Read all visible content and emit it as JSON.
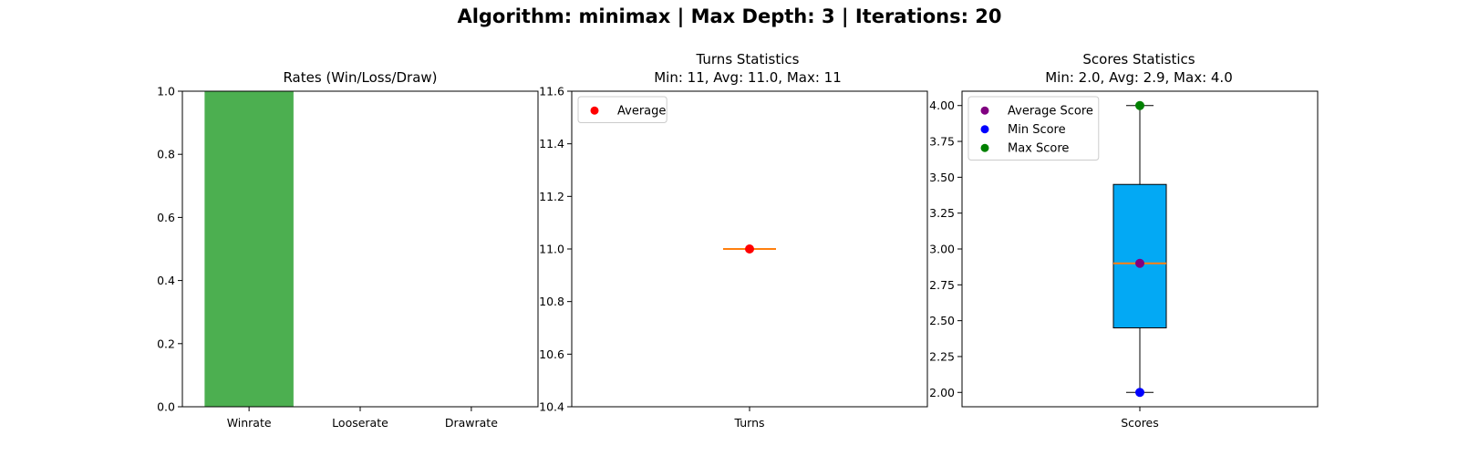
{
  "figure": {
    "suptitle": "Algorithm: minimax | Max Depth: 3 | Iterations: 20"
  },
  "chart_data": [
    {
      "type": "bar",
      "title": "Rates (Win/Loss/Draw)",
      "categories": [
        "Winrate",
        "Looserate",
        "Drawrate"
      ],
      "values": [
        1.0,
        0.0,
        0.0
      ],
      "ylim": [
        0,
        1
      ],
      "yticks": [
        "0.0",
        "0.2",
        "0.4",
        "0.6",
        "0.8",
        "1.0"
      ],
      "bar_color": "#4caf50",
      "grid": false
    },
    {
      "type": "box",
      "title_lines": [
        "Turns Statistics",
        "Min: 11, Avg: 11.0, Max: 11"
      ],
      "category": "Turns",
      "stats": {
        "min": 11,
        "q1": 11,
        "median": 11,
        "q3": 11,
        "max": 11
      },
      "points": [
        {
          "name": "Average",
          "value": 11.0,
          "color": "#ff0000"
        }
      ],
      "ylim": [
        10.4,
        11.6
      ],
      "yticks": [
        "10.4",
        "10.6",
        "10.8",
        "11.0",
        "11.2",
        "11.4",
        "11.6"
      ],
      "median_color": "#ff7f0e",
      "legend": "upper-left"
    },
    {
      "type": "box",
      "title_lines": [
        "Scores Statistics",
        "Min: 2.0, Avg: 2.9, Max: 4.0"
      ],
      "category": "Scores",
      "stats": {
        "min": 2.0,
        "q1": 2.45,
        "median": 2.9,
        "q3": 3.45,
        "max": 4.0
      },
      "points": [
        {
          "name": "Average Score",
          "value": 2.9,
          "color": "#800080"
        },
        {
          "name": "Min Score",
          "value": 2.0,
          "color": "#0000ff"
        },
        {
          "name": "Max Score",
          "value": 4.0,
          "color": "#008000"
        }
      ],
      "ylim": [
        1.9,
        4.1
      ],
      "yticks": [
        "2.00",
        "2.25",
        "2.50",
        "2.75",
        "3.00",
        "3.25",
        "3.50",
        "3.75",
        "4.00"
      ],
      "box_color": "#03a9f4",
      "median_color": "#ff7f0e",
      "legend": "upper-left"
    }
  ]
}
